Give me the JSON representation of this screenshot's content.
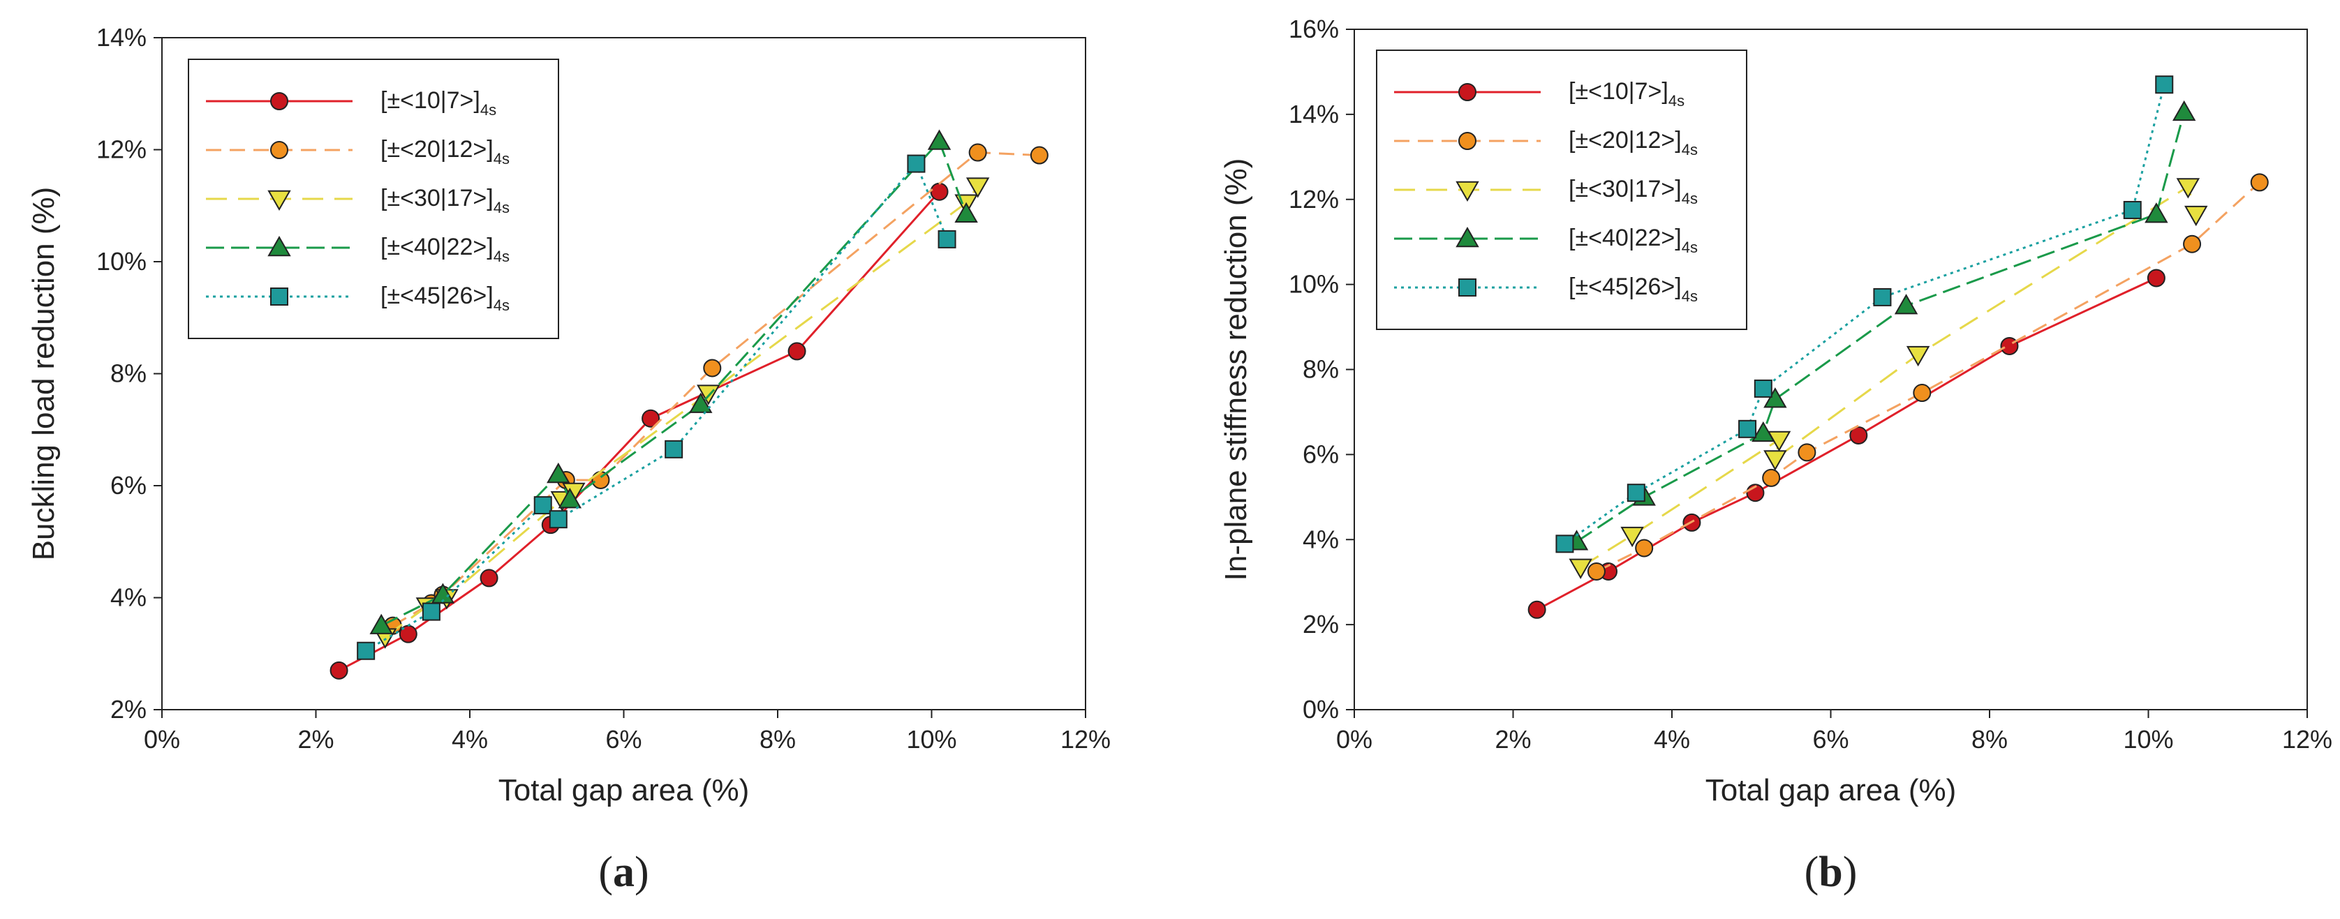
{
  "figure": {
    "panel_labels": [
      "(a)",
      "(b)"
    ]
  },
  "series_styles": [
    {
      "name": "[±<10|7>]4s",
      "color": "#e0202a",
      "marker": "circle",
      "marker_fill": "#c8161d",
      "dash": ""
    },
    {
      "name": "[±<20|12>]4s",
      "color": "#f4a261",
      "marker": "circle",
      "marker_fill": "#f0901e",
      "dash": "22,12"
    },
    {
      "name": "[±<30|17>]4s",
      "color": "#e6d84a",
      "marker": "triangle-down",
      "marker_fill": "#e8e040",
      "dash": "30,16"
    },
    {
      "name": "[±<40|22>]4s",
      "color": "#1a9a4a",
      "marker": "triangle-up",
      "marker_fill": "#1f8a3c",
      "dash": "26,10"
    },
    {
      "name": "[±<45|26>]4s",
      "color": "#1aa0a0",
      "marker": "square",
      "marker_fill": "#1f9a9a",
      "dash": "4,6"
    }
  ],
  "chart_data": [
    {
      "type": "line",
      "panel": "(a)",
      "xlabel": "Total gap area (%)",
      "ylabel": "Buckling load reduction (%)",
      "xlim": [
        0,
        12
      ],
      "ylim": [
        2,
        14
      ],
      "xticks": [
        "0%",
        "2%",
        "4%",
        "6%",
        "8%",
        "10%",
        "12%"
      ],
      "yticks": [
        "2%",
        "4%",
        "6%",
        "8%",
        "10%",
        "12%",
        "14%"
      ],
      "legend_position": "top-left",
      "series": [
        {
          "name": "[±<10|7>]4s",
          "x": [
            2.3,
            3.2,
            4.25,
            5.05,
            6.35,
            8.25,
            10.1
          ],
          "y": [
            2.7,
            3.35,
            4.35,
            5.3,
            7.2,
            8.4,
            11.25
          ]
        },
        {
          "name": "[±<20|12>]4s",
          "x": [
            3.0,
            3.5,
            3.65,
            5.25,
            5.7,
            7.15,
            10.6,
            11.4
          ],
          "y": [
            3.5,
            3.9,
            4.05,
            6.1,
            6.1,
            8.1,
            11.95,
            11.9
          ]
        },
        {
          "name": "[±<30|17>]4s",
          "x": [
            2.9,
            3.45,
            3.7,
            5.2,
            5.35,
            7.1,
            10.45,
            10.6
          ],
          "y": [
            3.3,
            3.85,
            4.0,
            5.75,
            5.9,
            7.65,
            11.05,
            11.35
          ]
        },
        {
          "name": "[±<40|22>]4s",
          "x": [
            2.85,
            3.65,
            5.15,
            5.3,
            7.0,
            10.1,
            10.45
          ],
          "y": [
            3.5,
            4.05,
            6.2,
            5.75,
            7.45,
            12.15,
            10.85
          ]
        },
        {
          "name": "[±<45|26>]4s",
          "x": [
            2.65,
            3.5,
            4.95,
            5.15,
            6.65,
            9.8,
            10.2
          ],
          "y": [
            3.05,
            3.75,
            5.65,
            5.4,
            6.65,
            11.75,
            10.4
          ]
        }
      ]
    },
    {
      "type": "line",
      "panel": "(b)",
      "xlabel": "Total gap area (%)",
      "ylabel": "In-plane stiffness reduction (%)",
      "xlim": [
        0,
        12
      ],
      "ylim": [
        0,
        16
      ],
      "xticks": [
        "0%",
        "2%",
        "4%",
        "6%",
        "8%",
        "10%",
        "12%"
      ],
      "yticks": [
        "0%",
        "2%",
        "4%",
        "6%",
        "8%",
        "10%",
        "12%",
        "14%",
        "16%"
      ],
      "legend_position": "top-left",
      "series": [
        {
          "name": "[±<10|7>]4s",
          "x": [
            2.3,
            3.2,
            4.25,
            5.05,
            6.35,
            8.25,
            10.1
          ],
          "y": [
            2.35,
            3.25,
            4.4,
            5.1,
            6.45,
            8.55,
            10.15
          ]
        },
        {
          "name": "[±<20|12>]4s",
          "x": [
            3.05,
            3.65,
            5.25,
            5.7,
            7.15,
            10.55,
            11.4
          ],
          "y": [
            3.25,
            3.8,
            5.45,
            6.05,
            7.45,
            10.95,
            12.4
          ]
        },
        {
          "name": "[±<30|17>]4s",
          "x": [
            2.85,
            3.5,
            5.35,
            5.3,
            7.1,
            10.5,
            10.6
          ],
          "y": [
            3.35,
            4.1,
            6.35,
            5.9,
            8.35,
            12.3,
            11.65
          ]
        },
        {
          "name": "[±<40|22>]4s",
          "x": [
            2.8,
            3.65,
            5.15,
            5.3,
            6.95,
            10.1,
            10.45
          ],
          "y": [
            3.95,
            5.0,
            6.5,
            7.3,
            9.5,
            11.65,
            14.05
          ]
        },
        {
          "name": "[±<45|26>]4s",
          "x": [
            2.65,
            3.55,
            4.95,
            5.15,
            6.65,
            9.8,
            10.2
          ],
          "y": [
            3.9,
            5.1,
            6.6,
            7.55,
            9.7,
            11.75,
            14.7
          ]
        }
      ]
    }
  ]
}
